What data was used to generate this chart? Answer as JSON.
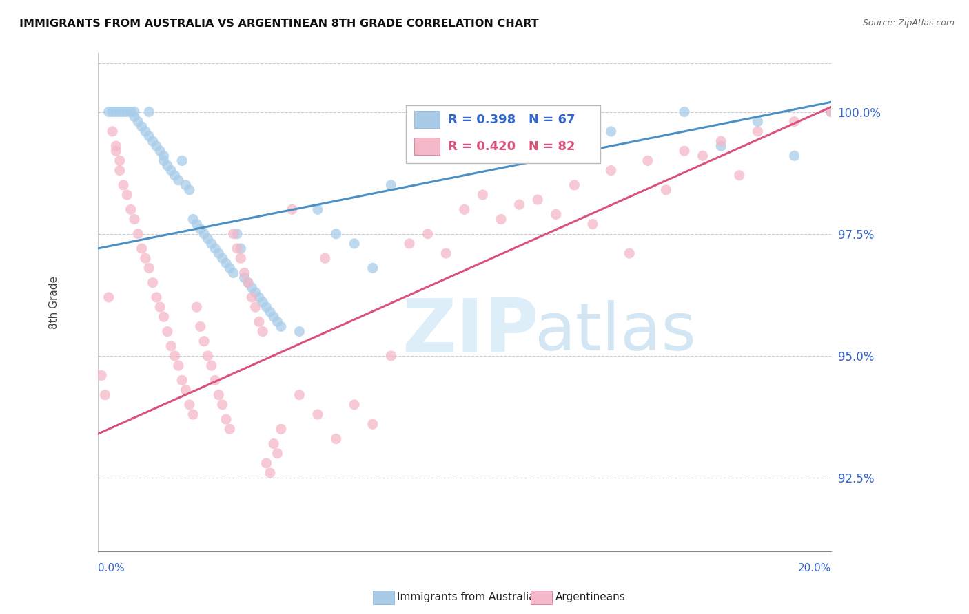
{
  "title": "IMMIGRANTS FROM AUSTRALIA VS ARGENTINEAN 8TH GRADE CORRELATION CHART",
  "source": "Source: ZipAtlas.com",
  "ylabel": "8th Grade",
  "legend_blue_r": "R = 0.398",
  "legend_blue_n": "N = 67",
  "legend_pink_r": "R = 0.420",
  "legend_pink_n": "N = 82",
  "legend_label_blue": "Immigrants from Australia",
  "legend_label_pink": "Argentineans",
  "blue_fill": "#a8cce8",
  "pink_fill": "#f4b8c8",
  "blue_line_color": "#4a90c4",
  "pink_line_color": "#d9527a",
  "text_blue": "#3366cc",
  "text_dark": "#222222",
  "ytick_color": "#3366cc",
  "xlim": [
    0,
    20
  ],
  "ylim": [
    91.0,
    101.2
  ],
  "yticks": [
    92.5,
    95.0,
    97.5,
    100.0
  ],
  "blue_trend_x0": 0,
  "blue_trend_y0": 97.2,
  "blue_trend_x1": 20,
  "blue_trend_y1": 100.2,
  "pink_trend_x0": 0,
  "pink_trend_y0": 93.4,
  "pink_trend_x1": 20,
  "pink_trend_y1": 100.1,
  "blue_x": [
    0.3,
    0.4,
    0.5,
    0.6,
    0.7,
    0.8,
    0.9,
    1.0,
    1.0,
    1.1,
    1.2,
    1.3,
    1.4,
    1.4,
    1.5,
    1.6,
    1.7,
    1.8,
    1.8,
    1.9,
    2.0,
    2.1,
    2.2,
    2.3,
    2.4,
    2.5,
    2.6,
    2.7,
    2.8,
    2.9,
    3.0,
    3.1,
    3.2,
    3.3,
    3.4,
    3.5,
    3.6,
    3.7,
    3.8,
    3.9,
    4.0,
    4.1,
    4.2,
    4.3,
    4.4,
    4.5,
    4.6,
    4.7,
    4.8,
    4.9,
    5.0,
    5.5,
    6.0,
    6.5,
    7.0,
    7.5,
    8.0,
    9.0,
    10.0,
    11.0,
    13.0,
    14.0,
    16.0,
    17.0,
    18.0,
    19.0,
    20.0
  ],
  "blue_y": [
    100.0,
    100.0,
    100.0,
    100.0,
    100.0,
    100.0,
    100.0,
    99.9,
    100.0,
    99.8,
    99.7,
    99.6,
    99.5,
    100.0,
    99.4,
    99.3,
    99.2,
    99.1,
    99.0,
    98.9,
    98.8,
    98.7,
    98.6,
    99.0,
    98.5,
    98.4,
    97.8,
    97.7,
    97.6,
    97.5,
    97.4,
    97.3,
    97.2,
    97.1,
    97.0,
    96.9,
    96.8,
    96.7,
    97.5,
    97.2,
    96.6,
    96.5,
    96.4,
    96.3,
    96.2,
    96.1,
    96.0,
    95.9,
    95.8,
    95.7,
    95.6,
    95.5,
    98.0,
    97.5,
    97.3,
    96.8,
    98.5,
    99.7,
    99.5,
    99.4,
    100.0,
    99.6,
    100.0,
    99.3,
    99.8,
    99.1,
    100.0
  ],
  "pink_x": [
    0.1,
    0.2,
    0.3,
    0.4,
    0.5,
    0.5,
    0.6,
    0.6,
    0.7,
    0.8,
    0.9,
    1.0,
    1.1,
    1.2,
    1.3,
    1.4,
    1.5,
    1.6,
    1.7,
    1.8,
    1.9,
    2.0,
    2.1,
    2.2,
    2.3,
    2.4,
    2.5,
    2.6,
    2.7,
    2.8,
    2.9,
    3.0,
    3.1,
    3.2,
    3.3,
    3.4,
    3.5,
    3.6,
    3.7,
    3.8,
    3.9,
    4.0,
    4.1,
    4.2,
    4.3,
    4.4,
    4.5,
    4.6,
    4.7,
    4.8,
    4.9,
    5.0,
    5.5,
    6.0,
    6.5,
    7.0,
    7.5,
    8.0,
    9.0,
    10.0,
    11.0,
    12.0,
    13.0,
    14.0,
    15.0,
    16.0,
    17.0,
    18.0,
    19.0,
    20.0,
    5.3,
    6.2,
    8.5,
    9.5,
    10.5,
    11.5,
    12.5,
    13.5,
    14.5,
    15.5,
    16.5,
    17.5
  ],
  "pink_y": [
    94.6,
    94.2,
    96.2,
    99.6,
    99.3,
    99.2,
    99.0,
    98.8,
    98.5,
    98.3,
    98.0,
    97.8,
    97.5,
    97.2,
    97.0,
    96.8,
    96.5,
    96.2,
    96.0,
    95.8,
    95.5,
    95.2,
    95.0,
    94.8,
    94.5,
    94.3,
    94.0,
    93.8,
    96.0,
    95.6,
    95.3,
    95.0,
    94.8,
    94.5,
    94.2,
    94.0,
    93.7,
    93.5,
    97.5,
    97.2,
    97.0,
    96.7,
    96.5,
    96.2,
    96.0,
    95.7,
    95.5,
    92.8,
    92.6,
    93.2,
    93.0,
    93.5,
    94.2,
    93.8,
    93.3,
    94.0,
    93.6,
    95.0,
    97.5,
    98.0,
    97.8,
    98.2,
    98.5,
    98.8,
    99.0,
    99.2,
    99.4,
    99.6,
    99.8,
    100.0,
    98.0,
    97.0,
    97.3,
    97.1,
    98.3,
    98.1,
    97.9,
    97.7,
    97.1,
    98.4,
    99.1,
    98.7
  ]
}
